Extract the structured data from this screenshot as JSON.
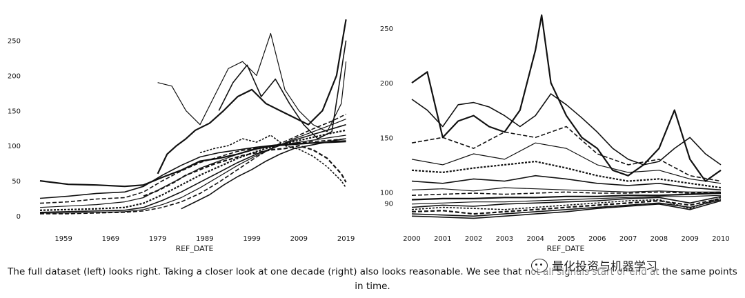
{
  "chart_data": [
    {
      "type": "line",
      "xlabel": "REF_DATE",
      "ylabel": "",
      "x_ticks": [
        "1959",
        "1969",
        "1979",
        "1989",
        "1999",
        "2009",
        "2019"
      ],
      "y_ticks": [
        "0",
        "50",
        "100",
        "150",
        "200",
        "250"
      ],
      "xlim": [
        1954,
        2019.5
      ],
      "ylim": [
        -5,
        290
      ],
      "grid": false,
      "legend": "none",
      "series": [
        {
          "x": [
            1954,
            1960,
            1966,
            1972,
            1976,
            1980,
            1984,
            1988,
            1992,
            1996,
            2000,
            2004,
            2008,
            2012,
            2016,
            2019
          ],
          "values": [
            50,
            45,
            44,
            42,
            44,
            55,
            65,
            78,
            82,
            88,
            96,
            100,
            102,
            104,
            105,
            106
          ]
        },
        {
          "x": [
            1954,
            1960,
            1966,
            1972,
            1976,
            1980,
            1984,
            1988,
            1992,
            1996,
            2000,
            2004,
            2008,
            2012,
            2016,
            2019
          ],
          "values": [
            25,
            28,
            32,
            34,
            42,
            58,
            72,
            84,
            90,
            94,
            98,
            101,
            103,
            104,
            106,
            107
          ]
        },
        {
          "x": [
            1954,
            1960,
            1966,
            1972,
            1976,
            1980,
            1984,
            1988,
            1992,
            1996,
            2000,
            2004,
            2008,
            2012,
            2016,
            2019
          ],
          "values": [
            18,
            20,
            24,
            26,
            34,
            50,
            64,
            76,
            84,
            92,
            97,
            100,
            103,
            106,
            108,
            110
          ]
        },
        {
          "x": [
            1954,
            1960,
            1966,
            1972,
            1976,
            1980,
            1984,
            1988,
            1992,
            1996,
            2000,
            2004,
            2008,
            2012,
            2016,
            2019
          ],
          "values": [
            12,
            14,
            16,
            20,
            26,
            40,
            54,
            68,
            78,
            88,
            95,
            100,
            104,
            108,
            112,
            115
          ]
        },
        {
          "x": [
            1954,
            1960,
            1966,
            1972,
            1976,
            1980,
            1984,
            1988,
            1992,
            1996,
            2000,
            2004,
            2008,
            2012,
            2016,
            2019
          ],
          "values": [
            8,
            9,
            10,
            12,
            18,
            30,
            44,
            58,
            70,
            82,
            92,
            100,
            106,
            112,
            118,
            122
          ]
        },
        {
          "x": [
            1954,
            1960,
            1966,
            1972,
            1976,
            1980,
            1984,
            1988,
            1992,
            1996,
            2000,
            2004,
            2008,
            2012,
            2016,
            2019
          ],
          "values": [
            5,
            6,
            7,
            8,
            12,
            22,
            34,
            48,
            62,
            76,
            88,
            98,
            108,
            116,
            124,
            130
          ]
        },
        {
          "x": [
            1954,
            1960,
            1966,
            1972,
            1976,
            1980,
            1984,
            1988,
            1992,
            1996,
            2000,
            2004,
            2008,
            2012,
            2016,
            2019
          ],
          "values": [
            4,
            4,
            5,
            6,
            9,
            16,
            26,
            40,
            56,
            72,
            86,
            98,
            110,
            120,
            130,
            138
          ]
        },
        {
          "x": [
            1954,
            1960,
            1966,
            1972,
            1976,
            1980,
            1984,
            1988,
            1992,
            1996,
            2000,
            2004,
            2008,
            2012,
            2016,
            2019
          ],
          "values": [
            3,
            3,
            4,
            5,
            7,
            12,
            20,
            32,
            48,
            66,
            84,
            100,
            112,
            124,
            135,
            145
          ]
        },
        {
          "x": [
            1979,
            1981,
            1983,
            1985,
            1987,
            1990,
            1993,
            1996,
            1999,
            2002,
            2005,
            2008,
            2011,
            2014,
            2017,
            2019
          ],
          "values": [
            60,
            88,
            100,
            110,
            122,
            132,
            150,
            170,
            180,
            160,
            150,
            140,
            130,
            150,
            200,
            280
          ]
        },
        {
          "x": [
            1979,
            1982,
            1985,
            1988,
            1991,
            1994,
            1997,
            2000,
            2003,
            2006,
            2009,
            2012,
            2015,
            2018,
            2019
          ],
          "values": [
            190,
            185,
            150,
            130,
            170,
            210,
            220,
            200,
            260,
            180,
            150,
            130,
            120,
            160,
            220
          ]
        },
        {
          "x": [
            1992,
            1995,
            1998,
            2001,
            2004,
            2007,
            2010,
            2013,
            2016,
            2019
          ],
          "values": [
            150,
            190,
            215,
            170,
            195,
            160,
            130,
            110,
            120,
            250
          ]
        },
        {
          "x": [
            1988,
            1991,
            1994,
            1997,
            2000,
            2003,
            2006,
            2009,
            2012,
            2015,
            2018,
            2019
          ],
          "values": [
            90,
            96,
            100,
            110,
            105,
            115,
            100,
            95,
            85,
            70,
            50,
            40
          ]
        },
        {
          "x": [
            1976,
            1979,
            1982,
            1985,
            1988,
            1991,
            1994,
            1997,
            2000,
            2003,
            2006,
            2009,
            2012,
            2015,
            2018,
            2019
          ],
          "values": [
            28,
            36,
            46,
            58,
            66,
            74,
            80,
            86,
            90,
            94,
            96,
            100,
            94,
            82,
            60,
            48
          ]
        },
        {
          "x": [
            1984,
            1987,
            1990,
            1993,
            1996,
            1999,
            2002,
            2005,
            2008,
            2011,
            2014,
            2017,
            2019
          ],
          "values": [
            10,
            20,
            30,
            44,
            56,
            66,
            78,
            88,
            96,
            100,
            104,
            108,
            110
          ]
        }
      ]
    },
    {
      "type": "line",
      "xlabel": "REF_DATE",
      "ylabel": "",
      "x_ticks": [
        "2000",
        "2001",
        "2002",
        "2003",
        "2004",
        "2005",
        "2006",
        "2007",
        "2008",
        "2009",
        "2010"
      ],
      "y_ticks": [
        "90",
        "100",
        "150",
        "200",
        "250"
      ],
      "xlim": [
        2000,
        2010
      ],
      "ylim": [
        75,
        262
      ],
      "grid": false,
      "legend": "none",
      "series": [
        {
          "x": [
            2000,
            2000.5,
            2001,
            2001.5,
            2002,
            2002.5,
            2003,
            2003.5,
            2004,
            2004.2,
            2004.5,
            2005,
            2005.5,
            2006,
            2006.5,
            2007,
            2007.5,
            2008,
            2008.5,
            2009,
            2009.5,
            2010
          ],
          "values": [
            200,
            210,
            150,
            165,
            170,
            160,
            155,
            175,
            230,
            262,
            200,
            170,
            150,
            140,
            120,
            115,
            125,
            140,
            175,
            130,
            110,
            120
          ]
        },
        {
          "x": [
            2000,
            2000.5,
            2001,
            2001.5,
            2002,
            2002.5,
            2003,
            2003.5,
            2004,
            2004.5,
            2005,
            2005.5,
            2006,
            2006.5,
            2007,
            2007.5,
            2008,
            2008.5,
            2009,
            2009.5,
            2010
          ],
          "values": [
            185,
            175,
            160,
            180,
            182,
            178,
            170,
            160,
            170,
            190,
            180,
            168,
            155,
            140,
            130,
            125,
            128,
            140,
            150,
            135,
            125
          ]
        },
        {
          "x": [
            2000,
            2001,
            2002,
            2003,
            2004,
            2005,
            2006,
            2007,
            2008,
            2009,
            2010
          ],
          "values": [
            145,
            150,
            140,
            155,
            150,
            160,
            135,
            125,
            130,
            115,
            110
          ]
        },
        {
          "x": [
            2000,
            2001,
            2002,
            2003,
            2004,
            2005,
            2006,
            2007,
            2008,
            2009,
            2010
          ],
          "values": [
            130,
            125,
            135,
            130,
            145,
            140,
            125,
            118,
            120,
            112,
            108
          ]
        },
        {
          "x": [
            2000,
            2001,
            2002,
            2003,
            2004,
            2005,
            2006,
            2007,
            2008,
            2009,
            2010
          ],
          "values": [
            120,
            118,
            122,
            125,
            128,
            122,
            115,
            110,
            112,
            108,
            104
          ]
        },
        {
          "x": [
            2000,
            2001,
            2002,
            2003,
            2004,
            2005,
            2006,
            2007,
            2008,
            2009,
            2010
          ],
          "values": [
            110,
            108,
            112,
            110,
            115,
            112,
            108,
            106,
            108,
            104,
            102
          ]
        },
        {
          "x": [
            2000,
            2001,
            2002,
            2003,
            2004,
            2005,
            2006,
            2007,
            2008,
            2009,
            2010
          ],
          "values": [
            102,
            103,
            101,
            104,
            103,
            102,
            101,
            100,
            101,
            100,
            100
          ]
        },
        {
          "x": [
            2000,
            2001,
            2002,
            2003,
            2004,
            2005,
            2006,
            2007,
            2008,
            2009,
            2010
          ],
          "values": [
            97,
            98,
            99,
            98,
            99,
            100,
            99,
            99,
            100,
            99,
            100
          ]
        },
        {
          "x": [
            2000,
            2001,
            2002,
            2003,
            2004,
            2005,
            2006,
            2007,
            2008,
            2009,
            2010
          ],
          "values": [
            93,
            94,
            94,
            95,
            95,
            96,
            96,
            97,
            97,
            98,
            99
          ]
        },
        {
          "x": [
            2000,
            2001,
            2002,
            2003,
            2004,
            2005,
            2006,
            2007,
            2008,
            2009,
            2010
          ],
          "values": [
            89,
            90,
            91,
            91,
            92,
            93,
            94,
            95,
            96,
            96,
            97
          ]
        },
        {
          "x": [
            2000,
            2001,
            2002,
            2003,
            2004,
            2005,
            2006,
            2007,
            2008,
            2009,
            2010
          ],
          "values": [
            86,
            88,
            87,
            89,
            90,
            91,
            92,
            94,
            95,
            90,
            96
          ]
        },
        {
          "x": [
            2000,
            2001,
            2002,
            2003,
            2004,
            2005,
            2006,
            2007,
            2008,
            2009,
            2010
          ],
          "values": [
            84,
            86,
            85,
            84,
            86,
            88,
            90,
            92,
            93,
            85,
            95
          ]
        },
        {
          "x": [
            2000,
            2001,
            2002,
            2003,
            2004,
            2005,
            2006,
            2007,
            2008,
            2009,
            2010
          ],
          "values": [
            82,
            83,
            80,
            82,
            84,
            86,
            88,
            90,
            92,
            88,
            94
          ]
        },
        {
          "x": [
            2000,
            2001,
            2002,
            2003,
            2004,
            2005,
            2006,
            2007,
            2008,
            2009,
            2010
          ],
          "values": [
            80,
            79,
            78,
            80,
            82,
            84,
            86,
            88,
            90,
            86,
            93
          ]
        },
        {
          "x": [
            2000,
            2001,
            2002,
            2003,
            2004,
            2005,
            2006,
            2007,
            2008,
            2009,
            2010
          ],
          "values": [
            78,
            77,
            76,
            78,
            80,
            82,
            85,
            87,
            89,
            84,
            92
          ]
        }
      ]
    }
  ],
  "caption": {
    "line1": "The full dataset (left) looks right. Taking a closer look at one decade (right) also looks reasonable. We see that not all signals start or end at the same points",
    "line2": "in time."
  },
  "watermark": {
    "text": "量化投资与机器学习",
    "icon": "wechat-icon"
  }
}
